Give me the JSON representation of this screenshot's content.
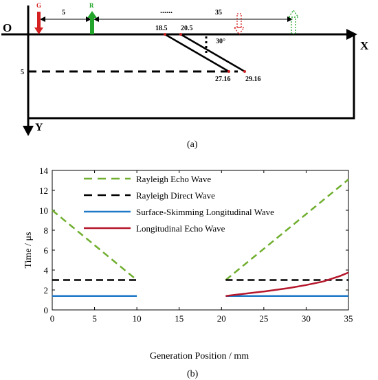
{
  "diagram": {
    "panel_label": "(a)",
    "origin_label": "O",
    "x_axis_label": "X",
    "y_axis_label": "Y",
    "generator_label": "G",
    "receiver_label": "R",
    "dots": "......",
    "dim_gr": "5",
    "dim_total": "35",
    "angle_label": "30°",
    "crack_top_left": "18.5",
    "crack_top_right": "20.5",
    "crack_bottom_left": "27.16",
    "crack_bottom_right": "29.16",
    "depth_label": "5",
    "colors": {
      "generator": "#d42020",
      "receiver": "#22a52a",
      "line": "#000000",
      "crack_point": "#cc2222"
    }
  },
  "chart_data": {
    "panel_label": "(b)",
    "type": "line",
    "xlabel": "Generation Position / mm",
    "ylabel": "Time / μs",
    "xlim": [
      0,
      35
    ],
    "ylim": [
      0,
      14
    ],
    "xticks": [
      "0",
      "5",
      "10",
      "15",
      "20",
      "25",
      "30",
      "35"
    ],
    "yticks": [
      "0",
      "2",
      "4",
      "6",
      "8",
      "10",
      "12",
      "14"
    ],
    "legend_position": "top-left",
    "grid": false,
    "series": [
      {
        "name": "Rayleigh Echo Wave",
        "color": "#6fae2e",
        "style": "dashed",
        "segments": [
          {
            "x": [
              0,
              10
            ],
            "y": [
              10.0,
              3.0
            ]
          },
          {
            "x": [
              20.5,
              35
            ],
            "y": [
              3.0,
              13.1
            ]
          }
        ]
      },
      {
        "name": "Rayleigh Direct Wave",
        "color": "#000000",
        "style": "dashed",
        "segments": [
          {
            "x": [
              0,
              10
            ],
            "y": [
              3.0,
              3.0
            ]
          },
          {
            "x": [
              20.5,
              35
            ],
            "y": [
              3.0,
              3.0
            ]
          }
        ]
      },
      {
        "name": "Surface-Skimming Longitudinal Wave",
        "color": "#1f78c8",
        "style": "solid",
        "segments": [
          {
            "x": [
              0,
              10
            ],
            "y": [
              1.4,
              1.4
            ]
          },
          {
            "x": [
              20.5,
              35
            ],
            "y": [
              1.4,
              1.4
            ]
          }
        ]
      },
      {
        "name": "Longitudinal Echo Wave",
        "color": "#b5162b",
        "style": "solid",
        "segments": [
          {
            "x": [
              20.5,
              22,
              25,
              28,
              30,
              32,
              34,
              35
            ],
            "y": [
              1.4,
              1.55,
              1.85,
              2.2,
              2.5,
              2.85,
              3.4,
              3.75
            ]
          }
        ]
      }
    ]
  }
}
